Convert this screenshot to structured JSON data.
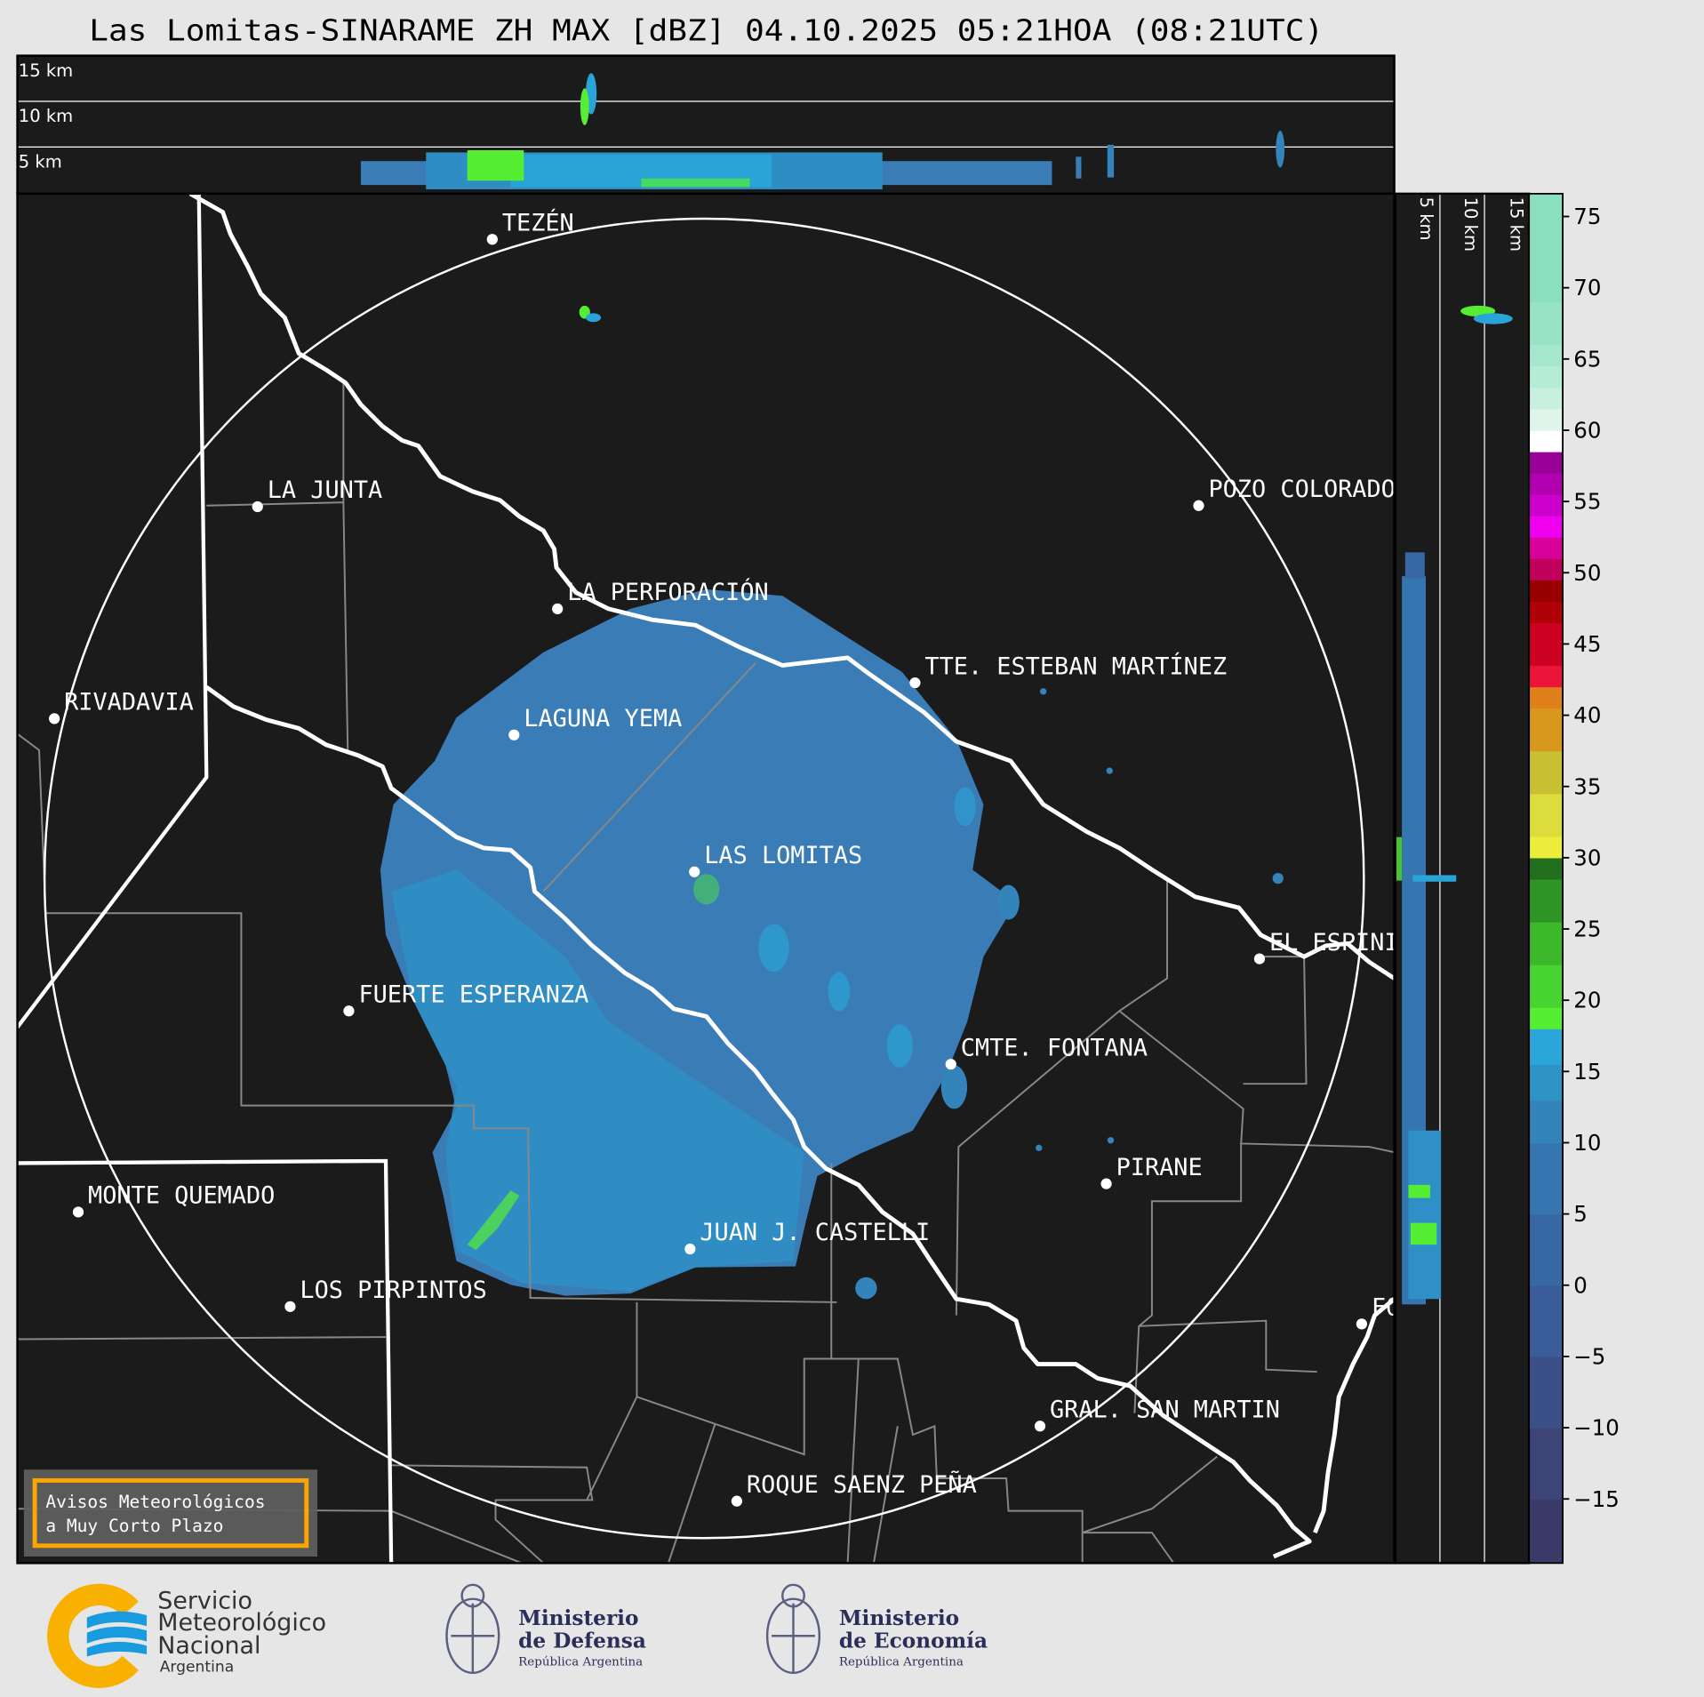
{
  "title": "Las Lomitas-SINARAME ZH MAX [dBZ] 04.10.2025 05:21HOA (08:21UTC)",
  "top_panel": {
    "labels": [
      "15 km",
      "10 km",
      "5 km"
    ]
  },
  "side_panel": {
    "labels": [
      "5 km",
      "10 km",
      "15 km"
    ]
  },
  "map": {
    "background": "#1b1b1b",
    "echo_color": "#3a7cb6",
    "echo_light_color": "#2aa3d6",
    "echo_green": "#55ee33",
    "cities": [
      {
        "name": "TEZÉN"
      },
      {
        "name": "LA JUNTA"
      },
      {
        "name": "POZO COLORADO"
      },
      {
        "name": "LA PERFORACIÓN"
      },
      {
        "name": "TTE. ESTEBAN MARTÍNEZ"
      },
      {
        "name": "RIVADAVIA"
      },
      {
        "name": "LAGUNA YEMA"
      },
      {
        "name": "LAS LOMITAS"
      },
      {
        "name": "EL ESPINILLO"
      },
      {
        "name": "FUERTE ESPERANZA"
      },
      {
        "name": "CMTE. FONTANA"
      },
      {
        "name": "PIRANE"
      },
      {
        "name": "MONTE QUEMADO"
      },
      {
        "name": "JUAN J. CASTELLI"
      },
      {
        "name": "LOS PIRPINTOS"
      },
      {
        "name": "FORMOSA"
      },
      {
        "name": "GRAL. SAN MARTIN"
      },
      {
        "name": "ROQUE SAENZ PEÑA"
      }
    ]
  },
  "warning_box": {
    "line1": "Avisos Meteorológicos",
    "line2": "a Muy Corto Plazo",
    "border_color": "#ffa500"
  },
  "colorbar": {
    "unit": "dBZ",
    "ticks": [
      "−15",
      "−10",
      "−5",
      "0",
      "5",
      "10",
      "15",
      "20",
      "25",
      "30",
      "35",
      "40",
      "45",
      "50",
      "55",
      "60",
      "65",
      "70",
      "75"
    ],
    "tick_values": [
      -15,
      -10,
      -5,
      0,
      5,
      10,
      15,
      20,
      25,
      30,
      35,
      40,
      45,
      50,
      55,
      60,
      65,
      70,
      75
    ],
    "range": [
      -19.5,
      76.6
    ],
    "segments": [
      {
        "from": -19.5,
        "to": -15,
        "color": "#3a3a68"
      },
      {
        "from": -15,
        "to": -10,
        "color": "#3c4478"
      },
      {
        "from": -10,
        "to": -5,
        "color": "#3c5088"
      },
      {
        "from": -5,
        "to": 0,
        "color": "#3a5c98"
      },
      {
        "from": 0,
        "to": 5,
        "color": "#3868a4"
      },
      {
        "from": 5,
        "to": 10,
        "color": "#3676b0"
      },
      {
        "from": 10,
        "to": 13,
        "color": "#3384ba"
      },
      {
        "from": 13,
        "to": 15.5,
        "color": "#2e94c6"
      },
      {
        "from": 15.5,
        "to": 18,
        "color": "#2aa7d8"
      },
      {
        "from": 18,
        "to": 19.5,
        "color": "#55ee33"
      },
      {
        "from": 19.5,
        "to": 22.5,
        "color": "#48d430"
      },
      {
        "from": 22.5,
        "to": 25.5,
        "color": "#3cb82a"
      },
      {
        "from": 25.5,
        "to": 28.5,
        "color": "#2e9424"
      },
      {
        "from": 28.5,
        "to": 30,
        "color": "#22701e"
      },
      {
        "from": 30,
        "to": 31.5,
        "color": "#ecec3a"
      },
      {
        "from": 31.5,
        "to": 34.5,
        "color": "#dcdc3a"
      },
      {
        "from": 34.5,
        "to": 37.5,
        "color": "#c8c032"
      },
      {
        "from": 37.5,
        "to": 40.5,
        "color": "#d8981e"
      },
      {
        "from": 40.5,
        "to": 42,
        "color": "#e0801a"
      },
      {
        "from": 42,
        "to": 43.5,
        "color": "#ec1438"
      },
      {
        "from": 43.5,
        "to": 46.5,
        "color": "#cc0020"
      },
      {
        "from": 46.5,
        "to": 48,
        "color": "#b00008"
      },
      {
        "from": 48,
        "to": 49.5,
        "color": "#980000"
      },
      {
        "from": 49.5,
        "to": 51,
        "color": "#c0005a"
      },
      {
        "from": 51,
        "to": 52.5,
        "color": "#d8009a"
      },
      {
        "from": 52.5,
        "to": 54,
        "color": "#ee00ee"
      },
      {
        "from": 54,
        "to": 55.5,
        "color": "#cc00cc"
      },
      {
        "from": 55.5,
        "to": 57,
        "color": "#b000b0"
      },
      {
        "from": 57,
        "to": 58.5,
        "color": "#980098"
      },
      {
        "from": 58.5,
        "to": 60,
        "color": "#ffffff"
      },
      {
        "from": 60,
        "to": 61.5,
        "color": "#dff5ec"
      },
      {
        "from": 61.5,
        "to": 63,
        "color": "#c8efdf"
      },
      {
        "from": 63,
        "to": 64.5,
        "color": "#b5ecd6"
      },
      {
        "from": 64.5,
        "to": 66,
        "color": "#a6e8cf"
      },
      {
        "from": 66,
        "to": 69,
        "color": "#98e3c6"
      },
      {
        "from": 69,
        "to": 76.6,
        "color": "#8adfbf"
      }
    ]
  },
  "logos": {
    "smn": {
      "line1": "Servicio",
      "line2": "Meteorológico",
      "line3": "Nacional",
      "line4": "Argentina"
    },
    "defensa": {
      "line1": "Ministerio",
      "line2": "de Defensa",
      "line3": "República Argentina"
    },
    "economia": {
      "line1": "Ministerio",
      "line2": "de Economía",
      "line3": "República Argentina"
    }
  }
}
